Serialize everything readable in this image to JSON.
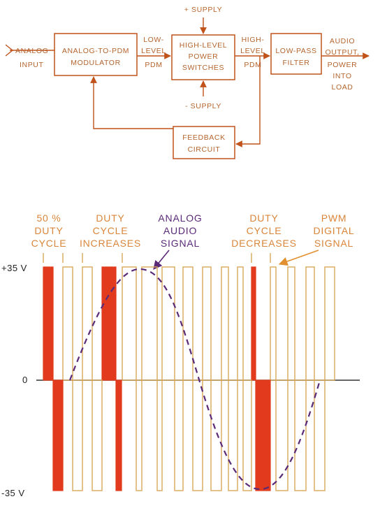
{
  "block_diagram": {
    "input_label": [
      "ANALOG",
      "INPUT"
    ],
    "blocks": {
      "modulator": [
        "ANALOG-TO-PDM",
        "MODULATOR"
      ],
      "switches": [
        "HIGH-LEVEL",
        "POWER",
        "SWITCHES"
      ],
      "filter": [
        "LOW-PASS",
        "FILTER"
      ],
      "feedback": [
        "FEEDBACK",
        "CIRCUIT"
      ]
    },
    "wire_labels": {
      "low_level": [
        "LOW-",
        "LEVEL",
        "PDM"
      ],
      "high_level": [
        "HIGH-",
        "LEVEL",
        "PDM"
      ],
      "output": [
        "AUDIO",
        "OUTPUT,",
        "POWER",
        "INTO",
        "LOAD"
      ],
      "plus_supply": "+ SUPPLY",
      "minus_supply": "- SUPPLY"
    }
  },
  "waveform": {
    "annotations": {
      "duty50": [
        "50 %",
        "DUTY",
        "CYCLE"
      ],
      "increases": [
        "DUTY",
        "CYCLE",
        "INCREASES"
      ],
      "analog": [
        "ANALOG",
        "AUDIO",
        "SIGNAL"
      ],
      "decreases": [
        "DUTY",
        "CYCLE",
        "DECREASES"
      ],
      "pwm": [
        "PWM",
        "DIGITAL",
        "SIGNAL"
      ]
    },
    "axis": {
      "plus": "+35 V",
      "zero": "0",
      "minus": "-35 V"
    },
    "colors": {
      "outline": "#d9a85a",
      "highlight": "#e23a1c",
      "analog": "#5a2a78",
      "box": "#c0521a"
    }
  }
}
